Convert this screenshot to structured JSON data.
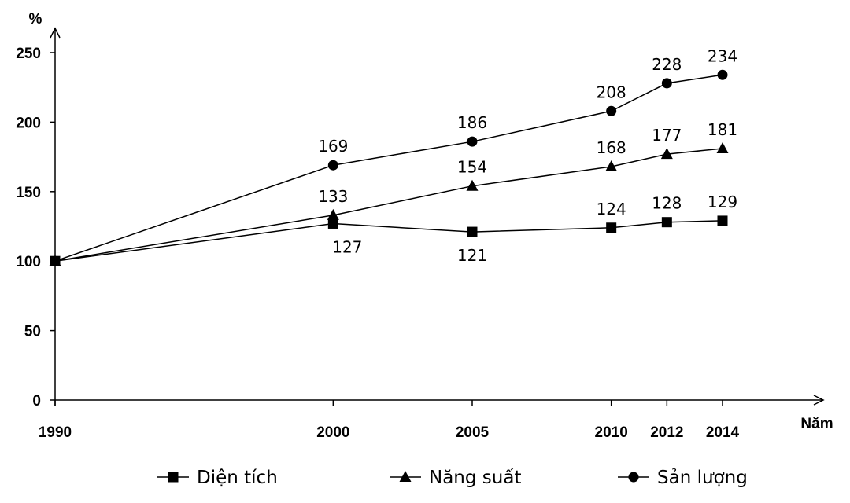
{
  "chart_data": {
    "type": "line",
    "ylabel": "%",
    "xlabel": "Năm",
    "x": [
      1990,
      2000,
      2005,
      2010,
      2012,
      2014
    ],
    "x_tick_labels": [
      "1990",
      "2000",
      "2005",
      "2010",
      "2012",
      "2014"
    ],
    "y_ticks": [
      0,
      50,
      100,
      150,
      200,
      250
    ],
    "ylim": [
      0,
      250
    ],
    "xlim": [
      1990,
      2014
    ],
    "grid": false,
    "legend_position": "bottom",
    "series": [
      {
        "name": "Diện tích",
        "marker": "square",
        "values": [
          100,
          127,
          121,
          124,
          128,
          129
        ],
        "labels": [
          "",
          "127",
          "121",
          "124",
          "128",
          "129"
        ],
        "label_position": [
          "none",
          "below",
          "below",
          "above",
          "above",
          "above"
        ]
      },
      {
        "name": "Năng suất",
        "marker": "triangle",
        "values": [
          100,
          133,
          154,
          168,
          177,
          181
        ],
        "labels": [
          "",
          "133",
          "154",
          "168",
          "177",
          "181"
        ],
        "label_position": [
          "none",
          "above",
          "above",
          "above",
          "above",
          "above"
        ]
      },
      {
        "name": "Sản lượng",
        "marker": "circle",
        "values": [
          100,
          169,
          186,
          208,
          228,
          234
        ],
        "labels": [
          "",
          "169",
          "186",
          "208",
          "228",
          "234"
        ],
        "label_position": [
          "none",
          "above",
          "above",
          "above",
          "above",
          "above"
        ]
      }
    ],
    "colors": {
      "line": "#000000",
      "background": "#ffffff"
    }
  }
}
